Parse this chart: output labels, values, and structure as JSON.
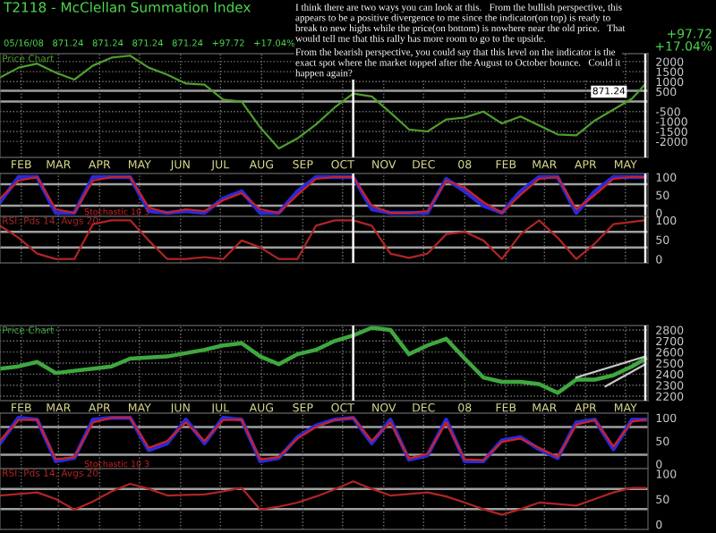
{
  "chart_data": [
    {
      "type": "line",
      "title": "T2118 - McClellan Summation Index",
      "subtitle": "Price Chart",
      "x": [
        "2007-01-16",
        "2007-01-30",
        "2007-02-13",
        "2007-02-27",
        "2007-03-13",
        "2007-03-27",
        "2007-04-10",
        "2007-04-24",
        "2007-05-08",
        "2007-05-22",
        "2007-06-05",
        "2007-06-19",
        "2007-07-03",
        "2007-07-17",
        "2007-07-31",
        "2007-08-14",
        "2007-08-28",
        "2007-09-11",
        "2007-09-25",
        "2007-10-09",
        "2007-10-23",
        "2007-11-06",
        "2007-11-20",
        "2007-12-04",
        "2007-12-18",
        "2008-01-01",
        "2008-01-15",
        "2008-01-29",
        "2008-02-12",
        "2008-02-26",
        "2008-03-11",
        "2008-03-25",
        "2008-04-08",
        "2008-04-22",
        "2008-05-06",
        "2008-05-16"
      ],
      "series": [
        {
          "color": "#4f9e2e",
          "values": [
            1200,
            1700,
            1900,
            1450,
            1100,
            1800,
            2200,
            2300,
            1700,
            1350,
            900,
            850,
            100,
            0,
            -1300,
            -2350,
            -1850,
            -1150,
            -300,
            400,
            250,
            -550,
            -1400,
            -1500,
            -900,
            -800,
            -500,
            -1100,
            -750,
            -1200,
            -1650,
            -1700,
            -950,
            -400,
            150,
            871.24
          ]
        }
      ],
      "xlim": [
        "2007-01-16",
        "2008-05-18"
      ],
      "ylim": [
        -2800,
        2400
      ],
      "xticks": [
        {
          "value": "2007-02-01",
          "label": "FEB"
        },
        {
          "value": "2007-03-01",
          "label": "MAR"
        },
        {
          "value": "2007-04-01",
          "label": "APR"
        },
        {
          "value": "2007-05-01",
          "label": "MAY"
        },
        {
          "value": "2007-06-01",
          "label": "JUN"
        },
        {
          "value": "2007-07-01",
          "label": "JUL"
        },
        {
          "value": "2007-08-01",
          "label": "AUG"
        },
        {
          "value": "2007-09-01",
          "label": "SEP"
        },
        {
          "value": "2007-10-01",
          "label": "OCT"
        },
        {
          "value": "2007-11-01",
          "label": "NOV"
        },
        {
          "value": "2007-12-01",
          "label": "DEC"
        },
        {
          "value": "2008-01-01",
          "label": "08"
        },
        {
          "value": "2008-02-01",
          "label": "FEB"
        },
        {
          "value": "2008-03-01",
          "label": "MAR"
        },
        {
          "value": "2008-04-01",
          "label": "APR"
        },
        {
          "value": "2008-05-01",
          "label": "MAY"
        }
      ],
      "yticks": [
        2000,
        1500,
        1000,
        500,
        -500,
        -1000,
        -1500,
        -2000
      ],
      "grid": true,
      "ref_lines": [
        {
          "axis": "y",
          "value": 540,
          "color": "#a0a0a0"
        },
        {
          "axis": "y",
          "value": 0,
          "color": "#a0a0a0"
        },
        {
          "axis": "x",
          "value": "2007-10-09",
          "color": "#ffffff"
        },
        {
          "axis": "x",
          "value": "2008-05-16",
          "color": "#ffffff"
        }
      ],
      "annotations": [
        "05/16/08   871.24   871.24   871.24   871.24   +97.72   +17.04%",
        "+97.72",
        "+17.04%",
        "I think there are two ways you can look at this.   From the bullish perspective, this appears to be a positive divergence to me since the indicator(on top) is ready to break to new highs while the price(on bottom) is nowhere near the old price.   That would tell me that this rally has more room to go to the upside.",
        "From the bearish perspective, you could say that this level on the indicator is the exact spot where the market topped after the August to October bounce.   Could it happen again?",
        {
          "text": "871.24",
          "x": "2008-05-16",
          "y": 871.24
        }
      ]
    },
    {
      "type": "line",
      "subtitle": "Stochastic 10 3",
      "tick_labels": "y",
      "x": [
        "2007-01-16",
        "2007-01-30",
        "2007-02-13",
        "2007-02-27",
        "2007-03-13",
        "2007-03-27",
        "2007-04-10",
        "2007-04-24",
        "2007-05-08",
        "2007-05-22",
        "2007-06-05",
        "2007-06-19",
        "2007-07-03",
        "2007-07-17",
        "2007-07-31",
        "2007-08-14",
        "2007-08-28",
        "2007-09-11",
        "2007-09-25",
        "2007-10-09",
        "2007-10-23",
        "2007-11-06",
        "2007-11-20",
        "2007-12-04",
        "2007-12-18",
        "2008-01-01",
        "2008-01-15",
        "2008-01-29",
        "2008-02-12",
        "2008-02-26",
        "2008-03-11",
        "2008-03-25",
        "2008-04-08",
        "2008-04-22",
        "2008-05-06",
        "2008-05-16"
      ],
      "series": [
        {
          "color": "#2a2ad8",
          "values": [
            30,
            100,
            100,
            0,
            0,
            100,
            100,
            100,
            5,
            0,
            5,
            0,
            40,
            60,
            0,
            0,
            60,
            100,
            100,
            100,
            10,
            0,
            0,
            0,
            95,
            60,
            20,
            0,
            60,
            100,
            100,
            0,
            60,
            100,
            100,
            100
          ]
        },
        {
          "color": "#d02020",
          "values": [
            40,
            90,
            100,
            10,
            0,
            90,
            100,
            100,
            15,
            0,
            10,
            5,
            35,
            55,
            10,
            0,
            50,
            95,
            100,
            100,
            20,
            0,
            0,
            5,
            90,
            70,
            30,
            0,
            50,
            95,
            100,
            10,
            50,
            95,
            100,
            100
          ]
        }
      ],
      "xlim": [
        "2007-01-16",
        "2008-05-18"
      ],
      "ylim": [
        -10,
        110
      ],
      "xticks": [
        {
          "value": "2007-02-01",
          "label": null
        },
        {
          "value": "2007-03-01",
          "label": null
        },
        {
          "value": "2007-04-01",
          "label": null
        },
        {
          "value": "2007-05-01",
          "label": null
        },
        {
          "value": "2007-06-01",
          "label": null
        },
        {
          "value": "2007-07-01",
          "label": null
        },
        {
          "value": "2007-08-01",
          "label": null
        },
        {
          "value": "2007-09-01",
          "label": null
        },
        {
          "value": "2007-10-01",
          "label": null
        },
        {
          "value": "2007-11-01",
          "label": null
        },
        {
          "value": "2007-12-01",
          "label": null
        },
        {
          "value": "2008-01-01",
          "label": null
        },
        {
          "value": "2008-02-01",
          "label": null
        },
        {
          "value": "2008-03-01",
          "label": null
        },
        {
          "value": "2008-04-01",
          "label": null
        },
        {
          "value": "2008-05-01",
          "label": null
        }
      ],
      "yticks": [
        0,
        50,
        100
      ],
      "grid": "x",
      "ref_lines": [
        {
          "axis": "y",
          "value": 80,
          "color": "#a0a0a0"
        },
        {
          "axis": "y",
          "value": 20,
          "color": "#a0a0a0"
        },
        {
          "axis": "x",
          "value": "2007-10-09",
          "color": "#ffffff"
        },
        {
          "axis": "x",
          "value": "2008-05-16",
          "color": "#ffffff"
        }
      ]
    },
    {
      "type": "line",
      "subtitle": "RSI: Pds 14, Avgs 20",
      "tick_labels": "y",
      "x": [
        "2007-01-16",
        "2007-01-30",
        "2007-02-13",
        "2007-02-27",
        "2007-03-13",
        "2007-03-27",
        "2007-04-10",
        "2007-04-24",
        "2007-05-08",
        "2007-05-22",
        "2007-06-05",
        "2007-06-19",
        "2007-07-03",
        "2007-07-17",
        "2007-07-31",
        "2007-08-14",
        "2007-08-28",
        "2007-09-11",
        "2007-09-25",
        "2007-10-09",
        "2007-10-23",
        "2007-11-06",
        "2007-11-20",
        "2007-12-04",
        "2007-12-18",
        "2008-01-01",
        "2008-01-15",
        "2008-01-29",
        "2008-02-12",
        "2008-02-26",
        "2008-03-11",
        "2008-03-25",
        "2008-04-08",
        "2008-04-22",
        "2008-05-06",
        "2008-05-16"
      ],
      "series": [
        {
          "color": "#b02424",
          "values": [
            86,
            55,
            14,
            0,
            0,
            90,
            100,
            100,
            48,
            0,
            0,
            5,
            0,
            48,
            30,
            0,
            0,
            86,
            100,
            100,
            86,
            14,
            3,
            14,
            64,
            70,
            48,
            0,
            64,
            100,
            55,
            0,
            40,
            90,
            96,
            100
          ]
        }
      ],
      "xlim": [
        "2007-01-16",
        "2008-05-18"
      ],
      "ylim": [
        -10,
        110
      ],
      "xticks": [
        {
          "value": "2007-02-01",
          "label": null
        },
        {
          "value": "2007-03-01",
          "label": null
        },
        {
          "value": "2007-04-01",
          "label": null
        },
        {
          "value": "2007-05-01",
          "label": null
        },
        {
          "value": "2007-06-01",
          "label": null
        },
        {
          "value": "2007-07-01",
          "label": null
        },
        {
          "value": "2007-08-01",
          "label": null
        },
        {
          "value": "2007-09-01",
          "label": null
        },
        {
          "value": "2007-10-01",
          "label": null
        },
        {
          "value": "2007-11-01",
          "label": null
        },
        {
          "value": "2007-12-01",
          "label": null
        },
        {
          "value": "2008-01-01",
          "label": null
        },
        {
          "value": "2008-02-01",
          "label": null
        },
        {
          "value": "2008-03-01",
          "label": null
        },
        {
          "value": "2008-04-01",
          "label": null
        },
        {
          "value": "2008-05-01",
          "label": null
        }
      ],
      "yticks": [
        0,
        50,
        100
      ],
      "grid": "x",
      "ref_lines": [
        {
          "axis": "y",
          "value": 70,
          "color": "#a0a0a0"
        },
        {
          "axis": "y",
          "value": 30,
          "color": "#a0a0a0"
        },
        {
          "axis": "x",
          "value": "2007-10-09",
          "color": "#ffffff"
        },
        {
          "axis": "x",
          "value": "2008-05-16",
          "color": "#ffffff"
        }
      ]
    },
    {
      "type": "line",
      "subtitle": "Price Chart",
      "x": [
        "2007-01-16",
        "2007-01-30",
        "2007-02-13",
        "2007-02-27",
        "2007-03-13",
        "2007-03-27",
        "2007-04-10",
        "2007-04-24",
        "2007-05-08",
        "2007-05-22",
        "2007-06-05",
        "2007-06-19",
        "2007-07-03",
        "2007-07-17",
        "2007-07-31",
        "2007-08-14",
        "2007-08-28",
        "2007-09-11",
        "2007-09-25",
        "2007-10-09",
        "2007-10-23",
        "2007-11-06",
        "2007-11-20",
        "2007-12-04",
        "2007-12-18",
        "2008-01-01",
        "2008-01-15",
        "2008-01-29",
        "2008-02-12",
        "2008-02-26",
        "2008-03-11",
        "2008-03-25",
        "2008-04-08",
        "2008-04-22",
        "2008-05-06",
        "2008-05-16"
      ],
      "series": [
        {
          "color": "#3fa83f",
          "values": [
            2450,
            2470,
            2510,
            2410,
            2430,
            2450,
            2470,
            2540,
            2550,
            2560,
            2590,
            2620,
            2660,
            2680,
            2560,
            2490,
            2580,
            2620,
            2700,
            2750,
            2820,
            2800,
            2580,
            2660,
            2720,
            2540,
            2370,
            2330,
            2330,
            2310,
            2230,
            2350,
            2350,
            2390,
            2470,
            2540
          ]
        },
        {
          "color": "#c8c8c8",
          "x": [
            "2008-03-25",
            "2008-05-16"
          ],
          "values": [
            2370,
            2560
          ]
        },
        {
          "color": "#c8c8c8",
          "x": [
            "2008-04-16",
            "2008-05-16"
          ],
          "values": [
            2290,
            2490
          ]
        }
      ],
      "xlim": [
        "2007-01-16",
        "2008-05-18"
      ],
      "ylim": [
        2160,
        2840
      ],
      "xticks": [
        {
          "value": "2007-02-01",
          "label": "FEB"
        },
        {
          "value": "2007-03-01",
          "label": "MAR"
        },
        {
          "value": "2007-04-01",
          "label": "APR"
        },
        {
          "value": "2007-05-01",
          "label": "MAY"
        },
        {
          "value": "2007-06-01",
          "label": "JUN"
        },
        {
          "value": "2007-07-01",
          "label": "JUL"
        },
        {
          "value": "2007-08-01",
          "label": "AUG"
        },
        {
          "value": "2007-09-01",
          "label": "SEP"
        },
        {
          "value": "2007-10-01",
          "label": "OCT"
        },
        {
          "value": "2007-11-01",
          "label": "NOV"
        },
        {
          "value": "2007-12-01",
          "label": "DEC"
        },
        {
          "value": "2008-01-01",
          "label": "08"
        },
        {
          "value": "2008-02-01",
          "label": "FEB"
        },
        {
          "value": "2008-03-01",
          "label": "MAR"
        },
        {
          "value": "2008-04-01",
          "label": "APR"
        },
        {
          "value": "2008-05-01",
          "label": "MAY"
        }
      ],
      "yticks": [
        2200,
        2300,
        2400,
        2500,
        2600,
        2700,
        2800
      ],
      "grid": true,
      "ref_lines": [
        {
          "axis": "x",
          "value": "2007-10-09",
          "color": "#ffffff"
        },
        {
          "axis": "x",
          "value": "2008-05-16",
          "color": "#ffffff"
        }
      ]
    },
    {
      "type": "line",
      "subtitle": "Stochastic 10 3",
      "tick_labels": "y",
      "x": [
        "2007-01-16",
        "2007-01-30",
        "2007-02-13",
        "2007-02-27",
        "2007-03-13",
        "2007-03-27",
        "2007-04-10",
        "2007-04-24",
        "2007-05-08",
        "2007-05-22",
        "2007-06-05",
        "2007-06-19",
        "2007-07-03",
        "2007-07-17",
        "2007-07-31",
        "2007-08-14",
        "2007-08-28",
        "2007-09-11",
        "2007-09-25",
        "2007-10-09",
        "2007-10-23",
        "2007-11-06",
        "2007-11-20",
        "2007-12-04",
        "2007-12-18",
        "2008-01-01",
        "2008-01-15",
        "2008-01-29",
        "2008-02-12",
        "2008-02-26",
        "2008-03-11",
        "2008-03-25",
        "2008-04-08",
        "2008-04-22",
        "2008-05-06",
        "2008-05-16"
      ],
      "series": [
        {
          "color": "#2a2ad8",
          "values": [
            45,
            100,
            96,
            6,
            13,
            96,
            100,
            100,
            30,
            45,
            96,
            45,
            100,
            96,
            6,
            13,
            58,
            83,
            96,
            100,
            45,
            96,
            9,
            19,
            96,
            6,
            6,
            51,
            58,
            32,
            13,
            90,
            96,
            32,
            96,
            96
          ]
        },
        {
          "color": "#d02020",
          "values": [
            50,
            95,
            96,
            10,
            15,
            90,
            100,
            100,
            35,
            50,
            90,
            50,
            95,
            96,
            10,
            15,
            55,
            80,
            95,
            100,
            50,
            90,
            12,
            22,
            90,
            10,
            8,
            48,
            55,
            35,
            15,
            85,
            95,
            38,
            92,
            96
          ]
        }
      ],
      "xlim": [
        "2007-01-16",
        "2008-05-18"
      ],
      "ylim": [
        -10,
        110
      ],
      "xticks": [
        {
          "value": "2007-02-01",
          "label": null
        },
        {
          "value": "2007-03-01",
          "label": null
        },
        {
          "value": "2007-04-01",
          "label": null
        },
        {
          "value": "2007-05-01",
          "label": null
        },
        {
          "value": "2007-06-01",
          "label": null
        },
        {
          "value": "2007-07-01",
          "label": null
        },
        {
          "value": "2007-08-01",
          "label": null
        },
        {
          "value": "2007-09-01",
          "label": null
        },
        {
          "value": "2007-10-01",
          "label": null
        },
        {
          "value": "2007-11-01",
          "label": null
        },
        {
          "value": "2007-12-01",
          "label": null
        },
        {
          "value": "2008-01-01",
          "label": null
        },
        {
          "value": "2008-02-01",
          "label": null
        },
        {
          "value": "2008-03-01",
          "label": null
        },
        {
          "value": "2008-04-01",
          "label": null
        },
        {
          "value": "2008-05-01",
          "label": null
        }
      ],
      "yticks": [
        0,
        50,
        100
      ],
      "grid": "x",
      "ref_lines": [
        {
          "axis": "y",
          "value": 80,
          "color": "#a0a0a0"
        },
        {
          "axis": "y",
          "value": 20,
          "color": "#a0a0a0"
        }
      ]
    },
    {
      "type": "line",
      "subtitle": "RSI: Pds 14, Avgs 20",
      "tick_labels": "y",
      "x": [
        "2007-01-16",
        "2007-01-30",
        "2007-02-13",
        "2007-02-27",
        "2007-03-13",
        "2007-03-27",
        "2007-04-10",
        "2007-04-24",
        "2007-05-08",
        "2007-05-22",
        "2007-06-05",
        "2007-06-19",
        "2007-07-03",
        "2007-07-17",
        "2007-07-31",
        "2007-08-14",
        "2007-08-28",
        "2007-09-11",
        "2007-09-25",
        "2007-10-09",
        "2007-10-23",
        "2007-11-06",
        "2007-11-20",
        "2007-12-04",
        "2007-12-18",
        "2008-01-01",
        "2008-01-15",
        "2008-01-29",
        "2008-02-12",
        "2008-02-26",
        "2008-03-11",
        "2008-03-25",
        "2008-04-08",
        "2008-04-22",
        "2008-05-06",
        "2008-05-16"
      ],
      "series": [
        {
          "color": "#b02424",
          "values": [
            57,
            60,
            63,
            50,
            29,
            45,
            65,
            80,
            70,
            57,
            58,
            59,
            65,
            72,
            29,
            35,
            43,
            55,
            69,
            85,
            70,
            57,
            60,
            63,
            55,
            43,
            30,
            19,
            30,
            43,
            40,
            37,
            50,
            63,
            72,
            72
          ]
        }
      ],
      "xlim": [
        "2007-01-16",
        "2008-05-18"
      ],
      "ylim": [
        -10,
        110
      ],
      "xticks": [
        {
          "value": "2007-02-01",
          "label": null
        },
        {
          "value": "2007-03-01",
          "label": null
        },
        {
          "value": "2007-04-01",
          "label": null
        },
        {
          "value": "2007-05-01",
          "label": null
        },
        {
          "value": "2007-06-01",
          "label": null
        },
        {
          "value": "2007-07-01",
          "label": null
        },
        {
          "value": "2007-08-01",
          "label": null
        },
        {
          "value": "2007-09-01",
          "label": null
        },
        {
          "value": "2007-10-01",
          "label": null
        },
        {
          "value": "2007-11-01",
          "label": null
        },
        {
          "value": "2007-12-01",
          "label": null
        },
        {
          "value": "2008-01-01",
          "label": null
        },
        {
          "value": "2008-02-01",
          "label": null
        },
        {
          "value": "2008-03-01",
          "label": null
        },
        {
          "value": "2008-04-01",
          "label": null
        },
        {
          "value": "2008-05-01",
          "label": null
        }
      ],
      "yticks": [
        0,
        50,
        100
      ],
      "grid": "x",
      "ref_lines": [
        {
          "axis": "y",
          "value": 70,
          "color": "#a0a0a0"
        },
        {
          "axis": "y",
          "value": 30,
          "color": "#a0a0a0"
        }
      ]
    }
  ]
}
